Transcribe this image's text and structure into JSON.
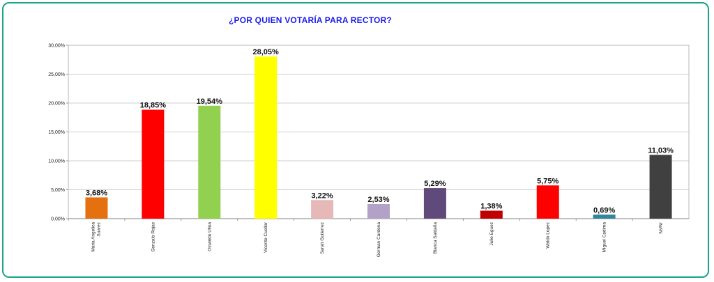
{
  "chart_data": {
    "type": "bar",
    "title": "¿POR QUIEN VOTARÍA PARA RECTOR?",
    "xlabel": "",
    "ylabel": "",
    "ylim": [
      0,
      30
    ],
    "yticks": [
      "0,00%",
      "5,00%",
      "10,00%",
      "15,00%",
      "20,00%",
      "25,00%",
      "30,00%"
    ],
    "grid": true,
    "legend": "none",
    "categories": [
      [
        "Maria Angelica",
        "Suarez"
      ],
      [
        "Gonzalo Rojas"
      ],
      [
        "Oswaldo Ulloa"
      ],
      [
        "Vicente Cuellar"
      ],
      [
        "Sarah Gutierrez"
      ],
      [
        "German Cardona"
      ],
      [
        "Blanca Saldaña"
      ],
      [
        "Julio Eguez"
      ],
      [
        "Waldo Lopez"
      ],
      [
        "Miguel Cadima"
      ],
      [
        "Ns/Nr"
      ]
    ],
    "values": [
      3.68,
      18.85,
      19.54,
      28.05,
      3.22,
      2.53,
      5.29,
      1.38,
      5.75,
      0.69,
      11.03
    ],
    "data_labels": [
      "3,68%",
      "18,85%",
      "19,54%",
      "28,05%",
      "3,22%",
      "2,53%",
      "5,29%",
      "1,38%",
      "5,75%",
      "0,69%",
      "11,03%"
    ],
    "colors": [
      "#e5700f",
      "#ff0000",
      "#92d050",
      "#ffff00",
      "#e6b9b8",
      "#b3a2c7",
      "#604a7b",
      "#c00000",
      "#ff0000",
      "#31859c",
      "#404040"
    ]
  }
}
